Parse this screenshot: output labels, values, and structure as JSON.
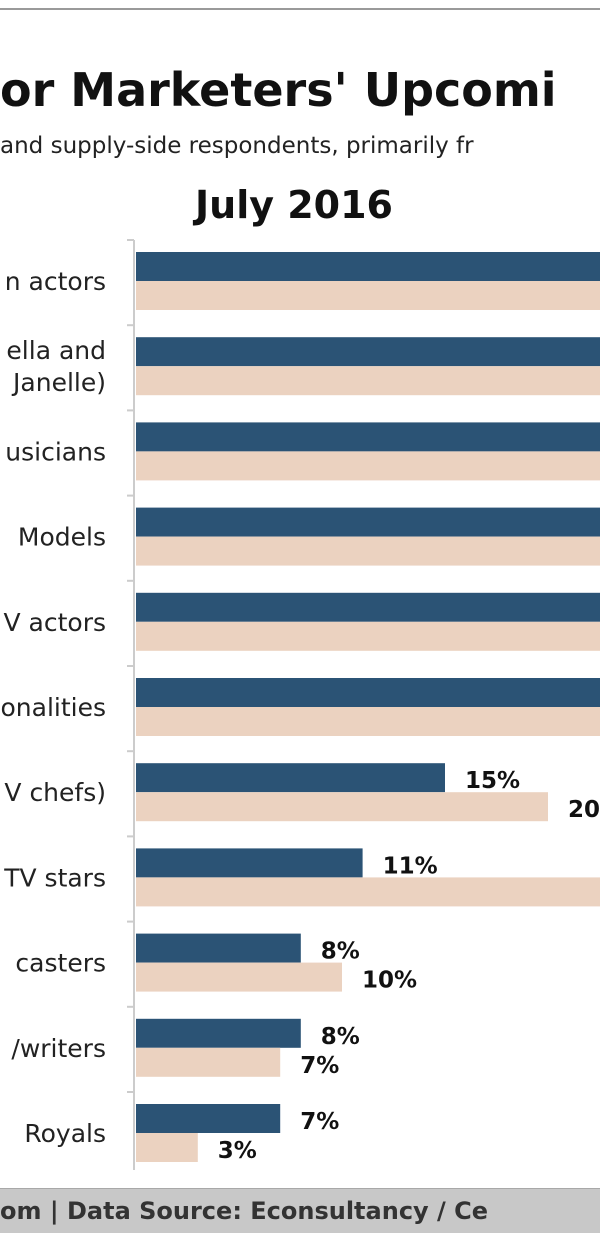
{
  "header": {
    "title": "or Marketers' Upcomi",
    "subtitle": "and supply-side respondents, primarily fr",
    "date": "July 2016"
  },
  "footer": {
    "text": "om | Data Source: Econsultancy / Ce"
  },
  "colors": {
    "series_a": "#2b5375",
    "series_b": "#ebd2c0",
    "axis": "#cccccc",
    "footer_bg": "#c8c8c8"
  },
  "chart_data": {
    "type": "bar",
    "orientation": "horizontal",
    "categories": [
      "n actors",
      "ella and\nJanelle)",
      "usicians",
      "Models",
      "V actors",
      "onalities",
      "V chefs)",
      "TV stars",
      "casters",
      "/writers",
      "Royals"
    ],
    "series": [
      {
        "values": [
          null,
          null,
          null,
          null,
          null,
          null,
          15,
          11,
          8,
          8,
          7
        ],
        "labels": [
          "",
          "",
          "",
          "",
          "",
          "",
          "15%",
          "11%",
          "8%",
          "8%",
          "7%"
        ]
      },
      {
        "values": [
          null,
          null,
          null,
          null,
          null,
          null,
          20,
          null,
          10,
          7,
          3
        ],
        "labels": [
          "",
          "",
          "",
          "",
          "",
          "",
          "20",
          "",
          "10%",
          "7%",
          "3%"
        ]
      }
    ],
    "truncated_right": true,
    "legend": "none",
    "grid": false
  }
}
